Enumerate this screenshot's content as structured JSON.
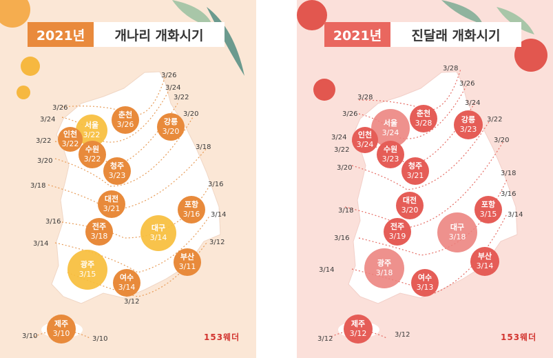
{
  "left": {
    "year": "2021년",
    "title": "개나리 개화시기",
    "cities": [
      {
        "name": "서울",
        "date": "3/22"
      },
      {
        "name": "인천",
        "date": "3/22"
      },
      {
        "name": "수원",
        "date": "3/22"
      },
      {
        "name": "춘천",
        "date": "3/26"
      },
      {
        "name": "강릉",
        "date": "3/20"
      },
      {
        "name": "청주",
        "date": "3/23"
      },
      {
        "name": "대전",
        "date": "3/21"
      },
      {
        "name": "포항",
        "date": "3/16"
      },
      {
        "name": "전주",
        "date": "3/18"
      },
      {
        "name": "대구",
        "date": "3/14"
      },
      {
        "name": "광주",
        "date": "3/15"
      },
      {
        "name": "부산",
        "date": "3/11"
      },
      {
        "name": "여수",
        "date": "3/14"
      },
      {
        "name": "제주",
        "date": "3/10"
      }
    ],
    "lines": [
      "3/26",
      "3/24",
      "3/22",
      "3/26",
      "3/24",
      "3/22",
      "3/20",
      "3/20",
      "3/18",
      "3/18",
      "3/16",
      "3/16",
      "3/14",
      "3/14",
      "3/12",
      "3/12",
      "3/10",
      "3/10"
    ],
    "logo": "153웨더"
  },
  "right": {
    "year": "2021년",
    "title": "진달래 개화시기",
    "cities": [
      {
        "name": "서울",
        "date": "3/24"
      },
      {
        "name": "인천",
        "date": "3/24"
      },
      {
        "name": "수원",
        "date": "3/23"
      },
      {
        "name": "춘천",
        "date": "3/28"
      },
      {
        "name": "강릉",
        "date": "3/23"
      },
      {
        "name": "청주",
        "date": "3/21"
      },
      {
        "name": "대전",
        "date": "3/20"
      },
      {
        "name": "포항",
        "date": "3/15"
      },
      {
        "name": "전주",
        "date": "3/19"
      },
      {
        "name": "대구",
        "date": "3/18"
      },
      {
        "name": "광주",
        "date": "3/18"
      },
      {
        "name": "부산",
        "date": "3/14"
      },
      {
        "name": "여수",
        "date": "3/13"
      },
      {
        "name": "제주",
        "date": "3/12"
      }
    ],
    "lines": [
      "3/28",
      "3/26",
      "3/24",
      "3/22",
      "3/20",
      "3/18",
      "3/16",
      "3/14",
      "3/28",
      "3/26",
      "3/24",
      "3/22",
      "3/20",
      "3/18",
      "3/16",
      "3/14",
      "3/12",
      "3/12"
    ],
    "logo": "153웨더"
  },
  "colors": {
    "left_bg": "#fbe7d6",
    "right_bg": "#fbe0da",
    "left_accent": "#e88a3b",
    "left_highlight": "#f7be3c",
    "right_accent": "#e55d57",
    "right_highlight": "#ec827d"
  }
}
